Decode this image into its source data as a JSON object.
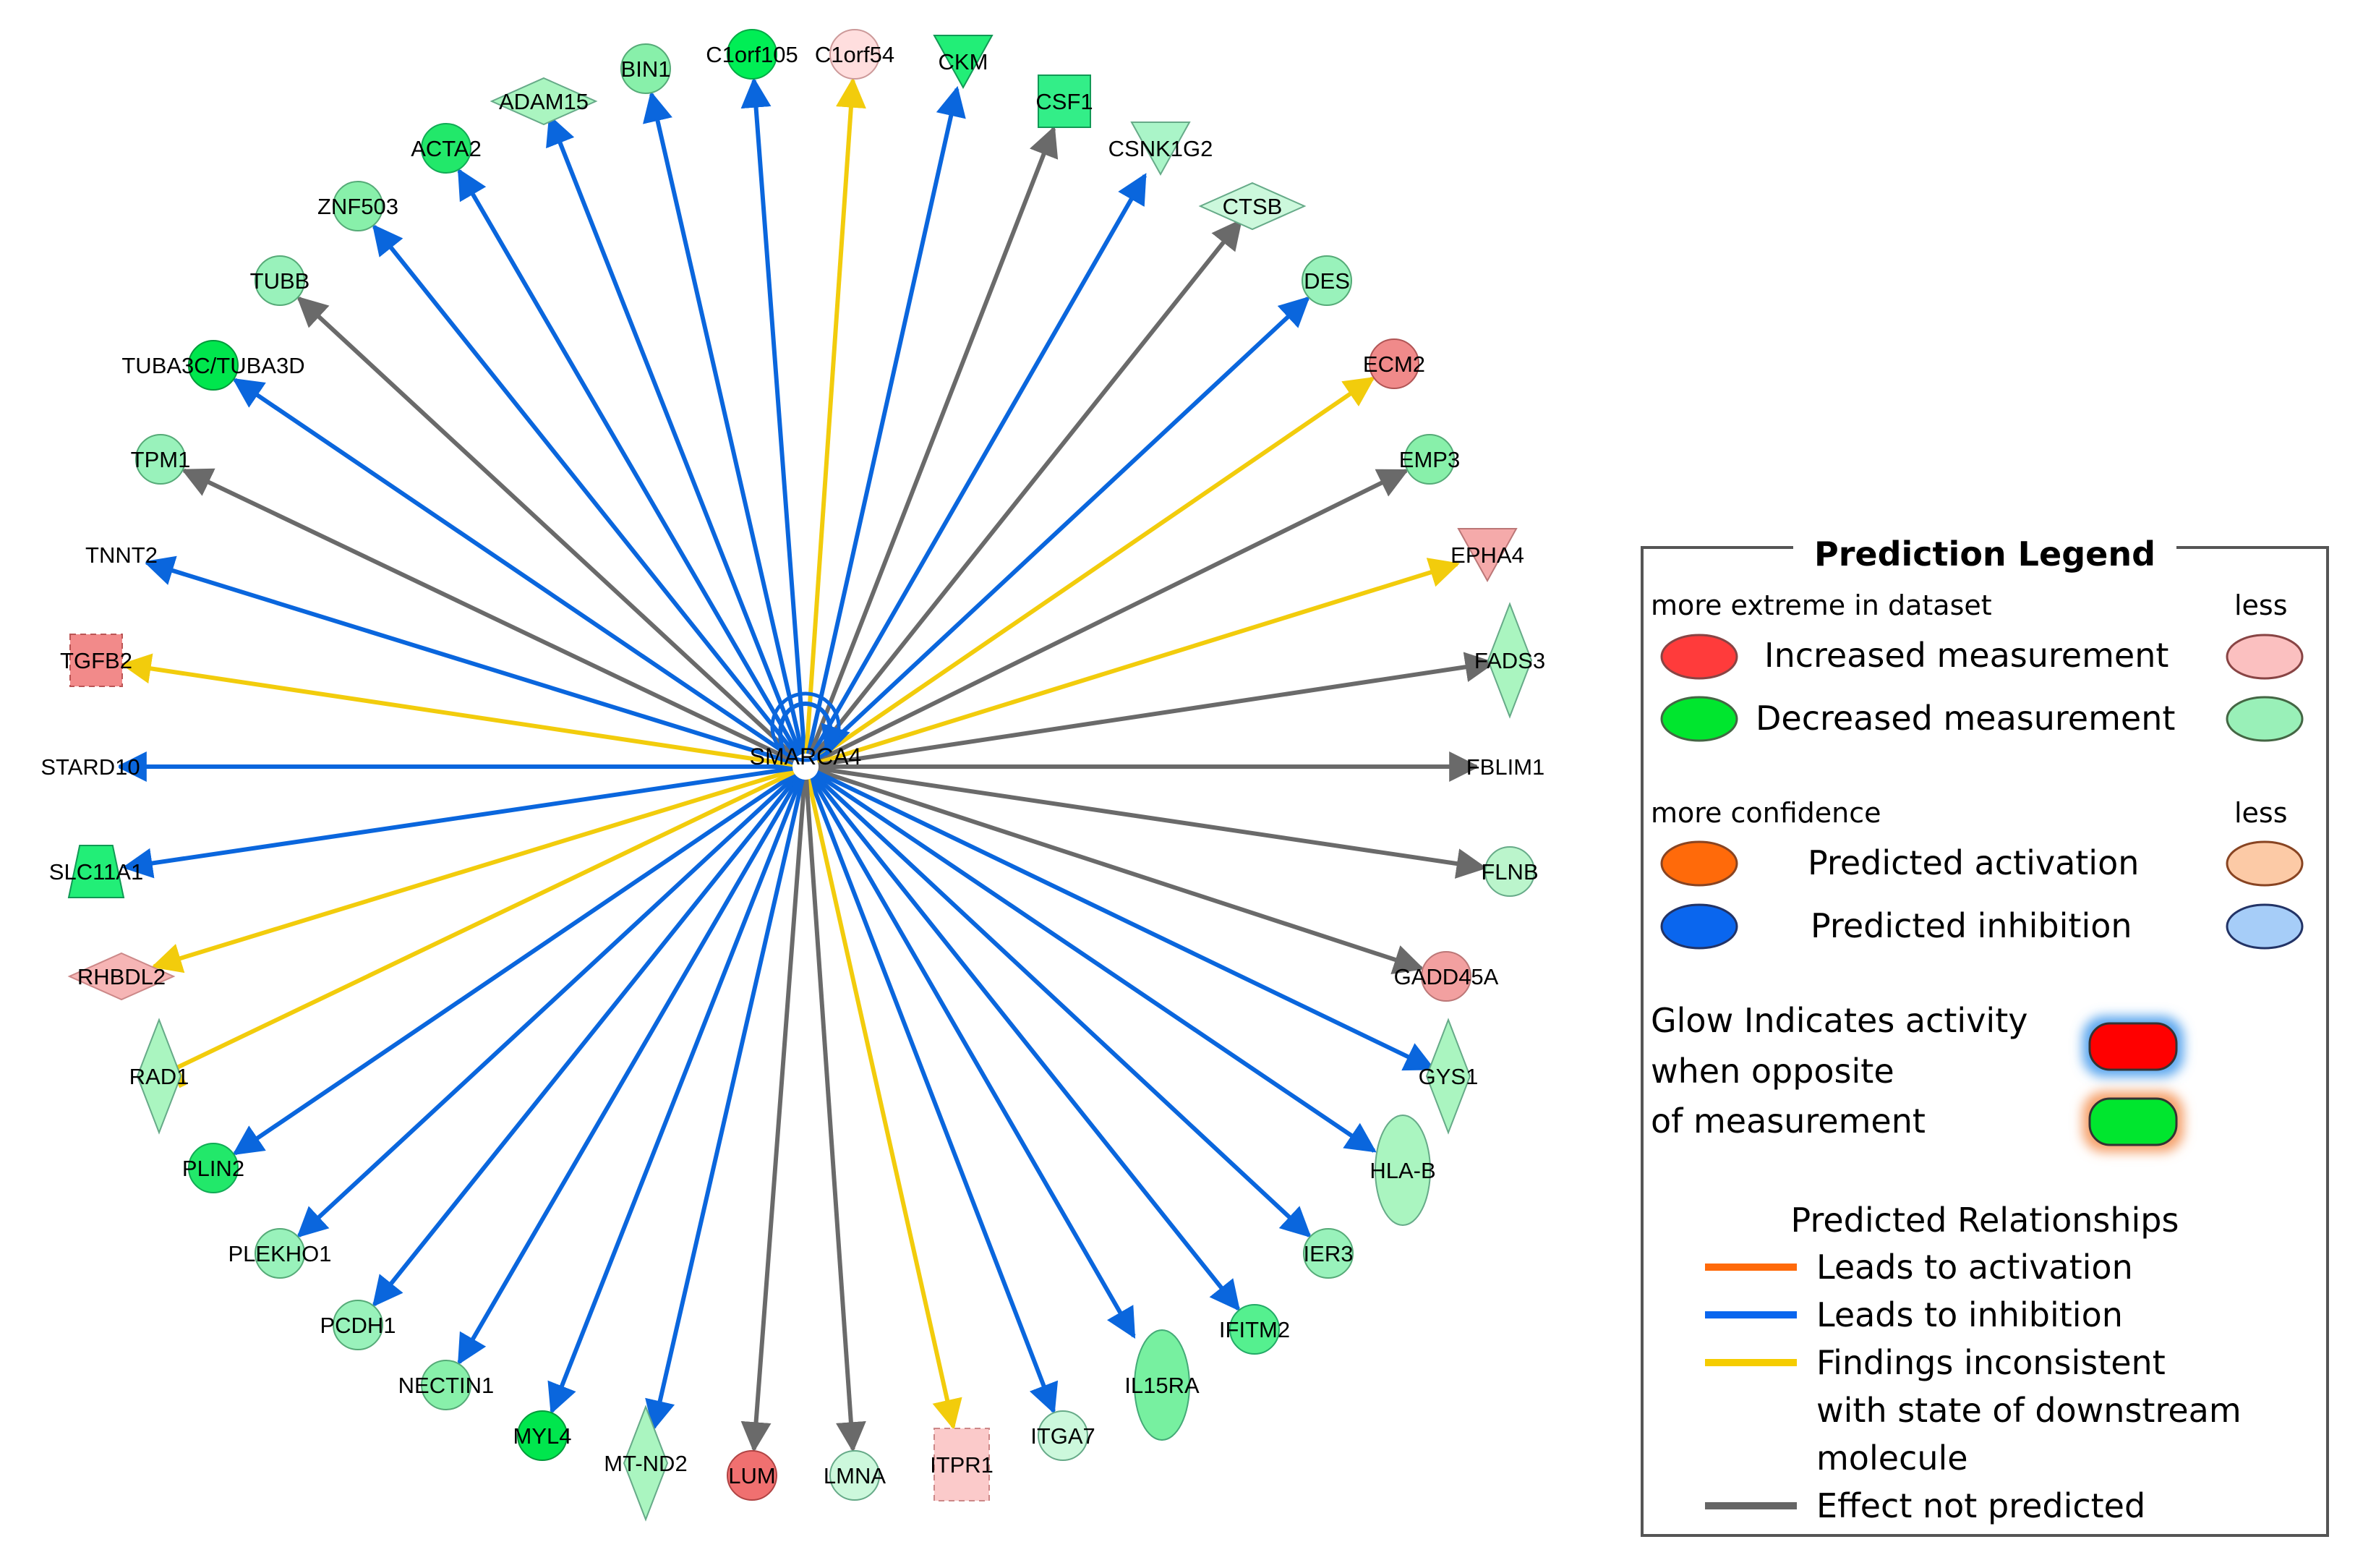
{
  "network": {
    "center": {
      "label": "SMARCA4"
    },
    "nodes": [
      {
        "label": "C1orf105",
        "shape": "circle",
        "fill": "#00ee55",
        "stroke": "#00aa44",
        "edge": "inhibition",
        "dashed": false
      },
      {
        "label": "C1orf54",
        "shape": "circle",
        "fill": "#ffdede",
        "stroke": "#cc9999",
        "edge": "inconsistent",
        "dashed": false
      },
      {
        "label": "CKM",
        "shape": "triangle-down",
        "fill": "#22ee77",
        "stroke": "#119955",
        "edge": "inhibition",
        "dashed": false
      },
      {
        "label": "CSF1",
        "shape": "square",
        "fill": "#33ee88",
        "stroke": "#119955",
        "edge": "not-predicted",
        "dashed": false
      },
      {
        "label": "CSNK1G2",
        "shape": "triangle-down",
        "fill": "#aaf5c8",
        "stroke": "#66aa88",
        "edge": "inhibition",
        "dashed": false
      },
      {
        "label": "CTSB",
        "shape": "diamond-wide",
        "fill": "#ccf8dc",
        "stroke": "#66aa88",
        "edge": "not-predicted",
        "dashed": false
      },
      {
        "label": "DES",
        "shape": "circle",
        "fill": "#99f2bb",
        "stroke": "#55aa77",
        "edge": "inhibition",
        "dashed": false
      },
      {
        "label": "ECM2",
        "shape": "circle",
        "fill": "#f08a8a",
        "stroke": "#b05555",
        "edge": "inconsistent",
        "dashed": false
      },
      {
        "label": "EMP3",
        "shape": "circle",
        "fill": "#88f0aa",
        "stroke": "#55aa77",
        "edge": "not-predicted",
        "dashed": false
      },
      {
        "label": "EPHA4",
        "shape": "triangle-down",
        "fill": "#f5aaaa",
        "stroke": "#bb7777",
        "edge": "inconsistent",
        "dashed": false
      },
      {
        "label": "FADS3",
        "shape": "diamond",
        "fill": "#aaf5c0",
        "stroke": "#66aa88",
        "edge": "not-predicted",
        "dashed": false
      },
      {
        "label": "FBLIM1",
        "shape": "rect",
        "fill": "#ffffff",
        "stroke": "#ffffff",
        "edge": "not-predicted",
        "dashed": false
      },
      {
        "label": "FLNB",
        "shape": "circle",
        "fill": "#bbf5cc",
        "stroke": "#66aa88",
        "edge": "not-predicted",
        "dashed": false
      },
      {
        "label": "GADD45A",
        "shape": "circle",
        "fill": "#f2a0a0",
        "stroke": "#bb7777",
        "edge": "not-predicted",
        "dashed": false
      },
      {
        "label": "GYS1",
        "shape": "diamond",
        "fill": "#aaf5c0",
        "stroke": "#66aa88",
        "edge": "inhibition",
        "dashed": false
      },
      {
        "label": "HLA-B",
        "shape": "ellipse",
        "fill": "#aaf5c0",
        "stroke": "#66aa88",
        "edge": "inhibition",
        "dashed": false
      },
      {
        "label": "IER3",
        "shape": "circle",
        "fill": "#99f2bb",
        "stroke": "#55aa77",
        "edge": "inhibition",
        "dashed": false
      },
      {
        "label": "IFITM2",
        "shape": "circle",
        "fill": "#55f08f",
        "stroke": "#22aa66",
        "edge": "inhibition",
        "dashed": false
      },
      {
        "label": "IL15RA",
        "shape": "ellipse",
        "fill": "#77f0a0",
        "stroke": "#44aa77",
        "edge": "inhibition",
        "dashed": false
      },
      {
        "label": "ITGA7",
        "shape": "circle",
        "fill": "#ccf8dc",
        "stroke": "#66aa88",
        "edge": "inhibition",
        "dashed": false
      },
      {
        "label": "ITPR1",
        "shape": "rect",
        "fill": "#fbcaca",
        "stroke": "#cc8888",
        "edge": "inconsistent",
        "dashed": true
      },
      {
        "label": "LMNA",
        "shape": "circle",
        "fill": "#ccf8dc",
        "stroke": "#66aa88",
        "edge": "not-predicted",
        "dashed": false
      },
      {
        "label": "LUM",
        "shape": "circle",
        "fill": "#f07070",
        "stroke": "#b04444",
        "edge": "not-predicted",
        "dashed": false
      },
      {
        "label": "MT-ND2",
        "shape": "diamond",
        "fill": "#aaf5c0",
        "stroke": "#66aa88",
        "edge": "inhibition",
        "dashed": false
      },
      {
        "label": "MYL4",
        "shape": "circle",
        "fill": "#00e64d",
        "stroke": "#00993a",
        "edge": "inhibition",
        "dashed": false
      },
      {
        "label": "NECTIN1",
        "shape": "circle",
        "fill": "#88f0aa",
        "stroke": "#55aa77",
        "edge": "inhibition",
        "dashed": false
      },
      {
        "label": "PCDH1",
        "shape": "circle",
        "fill": "#99f2bb",
        "stroke": "#55aa77",
        "edge": "inhibition",
        "dashed": false
      },
      {
        "label": "PLEKHO1",
        "shape": "circle",
        "fill": "#99f2bb",
        "stroke": "#55aa77",
        "edge": "inhibition",
        "dashed": false
      },
      {
        "label": "PLIN2",
        "shape": "circle",
        "fill": "#22e86a",
        "stroke": "#11aa55",
        "edge": "inhibition",
        "dashed": false
      },
      {
        "label": "RAD1",
        "shape": "diamond",
        "fill": "#aaf5c0",
        "stroke": "#66aa88",
        "edge": "inconsistent-tbar",
        "dashed": false
      },
      {
        "label": "RHBDL2",
        "shape": "diamond-wide",
        "fill": "#f6b5b5",
        "stroke": "#cc8888",
        "edge": "inconsistent",
        "dashed": false
      },
      {
        "label": "SLC11A1",
        "shape": "trapezoid",
        "fill": "#22ee77",
        "stroke": "#119955",
        "edge": "inhibition",
        "dashed": false
      },
      {
        "label": "STARD10",
        "shape": "rect",
        "fill": "#ffffff",
        "stroke": "#ffffff",
        "edge": "inhibition",
        "dashed": false
      },
      {
        "label": "TGFB2",
        "shape": "square",
        "fill": "#f28a8a",
        "stroke": "#bb5555",
        "edge": "inconsistent",
        "dashed": true
      },
      {
        "label": "TNNT2",
        "shape": "circle",
        "fill": "#ffffff",
        "stroke": "#ffffff",
        "edge": "inhibition",
        "dashed": false
      },
      {
        "label": "TPM1",
        "shape": "circle",
        "fill": "#99f2bb",
        "stroke": "#55aa77",
        "edge": "not-predicted",
        "dashed": false
      },
      {
        "label": "TUBA3C/TUBA3D",
        "shape": "circle",
        "fill": "#00e64d",
        "stroke": "#00993a",
        "edge": "inhibition",
        "dashed": false
      },
      {
        "label": "TUBB",
        "shape": "circle",
        "fill": "#99f2bb",
        "stroke": "#55aa77",
        "edge": "not-predicted",
        "dashed": false
      },
      {
        "label": "ZNF503",
        "shape": "circle",
        "fill": "#88f0aa",
        "stroke": "#55aa77",
        "edge": "inhibition",
        "dashed": false
      },
      {
        "label": "ACTA2",
        "shape": "circle",
        "fill": "#22e86a",
        "stroke": "#11aa55",
        "edge": "inhibition",
        "dashed": false
      },
      {
        "label": "ADAM15",
        "shape": "diamond-wide",
        "fill": "#aaf5c0",
        "stroke": "#66aa88",
        "edge": "inhibition",
        "dashed": false
      },
      {
        "label": "BIN1",
        "shape": "circle",
        "fill": "#88f0aa",
        "stroke": "#55aa77",
        "edge": "inhibition",
        "dashed": false
      }
    ]
  },
  "legend": {
    "title": "Prediction Legend",
    "section1": {
      "left_heading": "more extreme in dataset",
      "right_heading": "less",
      "rows": [
        {
          "label": "Increased measurement",
          "color_strong": "#ff3b3b",
          "color_weak": "#fbc0c0"
        },
        {
          "label": "Decreased measurement",
          "color_strong": "#00e62e",
          "color_weak": "#99f0b8"
        }
      ]
    },
    "section2": {
      "left_heading": "more confidence",
      "right_heading": "less",
      "rows": [
        {
          "label": "Predicted activation",
          "color_strong": "#ff6a0a",
          "color_weak": "#fccaa6"
        },
        {
          "label": "Predicted inhibition",
          "color_strong": "#0a66ee",
          "color_weak": "#a6cdf8"
        }
      ]
    },
    "glow": {
      "lines": [
        "Glow Indicates activity",
        "when opposite",
        "of measurement"
      ],
      "swatch1_fill": "#ff0000",
      "swatch1_glow": "#5aa6ee",
      "swatch2_fill": "#00e62e",
      "swatch2_glow": "#f5a06a"
    },
    "relationships": {
      "title": "Predicted Relationships",
      "items": [
        {
          "label": "Leads to activation",
          "color": "#ff6a0a"
        },
        {
          "label": "Leads to inhibition",
          "color": "#0a66ee"
        },
        {
          "label": "Findings inconsistent",
          "color": "#f5cc00"
        },
        {
          "label": "with state of downstream",
          "color": ""
        },
        {
          "label": "molecule",
          "color": ""
        },
        {
          "label": "Effect not predicted",
          "color": "#666666"
        }
      ]
    }
  },
  "colors": {
    "inhibition": "#0a66dd",
    "inconsistent": "#f2cc0c",
    "not-predicted": "#6a6a6a",
    "inconsistent-tbar": "#f2cc0c"
  }
}
